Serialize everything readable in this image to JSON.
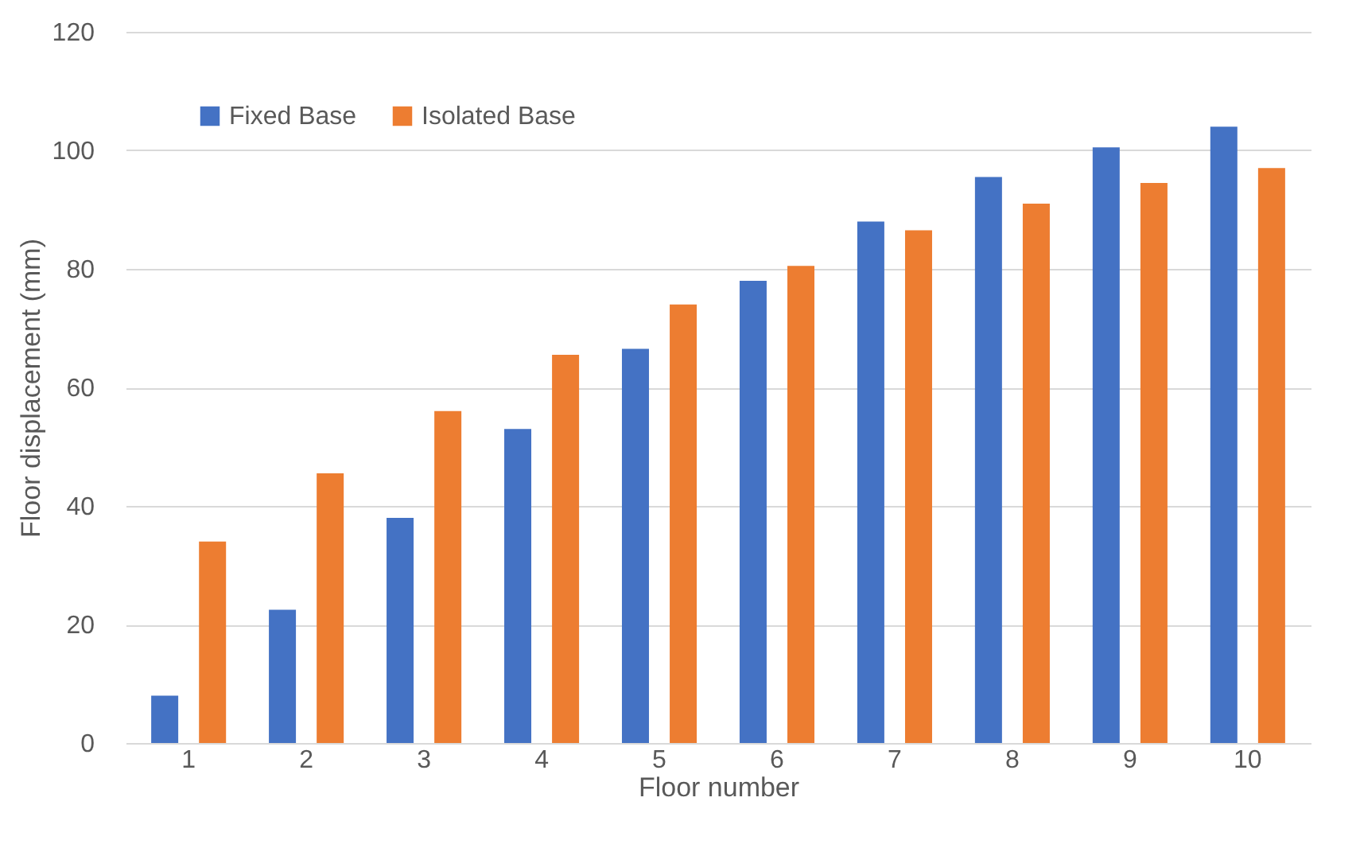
{
  "chart_data": {
    "type": "bar",
    "xlabel": "Floor number",
    "ylabel": "Floor displacement (mm)",
    "categories": [
      "1",
      "2",
      "3",
      "4",
      "5",
      "6",
      "7",
      "8",
      "9",
      "10"
    ],
    "series": [
      {
        "name": "Fixed Base",
        "color": "#4472c4",
        "values": [
          8,
          22.5,
          38,
          53,
          66.5,
          78,
          88,
          95.5,
          100.5,
          104
        ]
      },
      {
        "name": "Isolated Base",
        "color": "#ed7d31",
        "values": [
          34,
          45.5,
          56,
          65.5,
          74,
          80.5,
          86.5,
          91,
          94.5,
          97
        ]
      }
    ],
    "ylim": [
      0,
      120
    ],
    "yticks": [
      0,
      20,
      40,
      60,
      80,
      100,
      120
    ],
    "grid": "y",
    "legend": "top left"
  }
}
